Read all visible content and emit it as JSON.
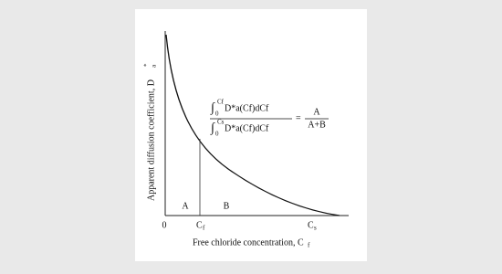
{
  "figure": {
    "y_axis_label": {
      "text": "Apparent diffusion coefficient, D",
      "sub": "a",
      "sup": "*"
    },
    "x_axis_label": {
      "text": "Free chloride concentration, C",
      "sub": "f"
    },
    "origin": "0",
    "cf_tick": {
      "text": "C",
      "sub": "f"
    },
    "cs_tick": {
      "text": "C",
      "sub": "s"
    },
    "region_a": "A",
    "region_b": "B",
    "formula": {
      "integral": "∫",
      "num_upper": "Cf",
      "num_lower": "0",
      "num_body": "D*a(Cf)dCf",
      "den_upper": "Cs",
      "den_lower": "0",
      "den_body": "D*a(Cf)dCf",
      "equals": "=",
      "rhs_num": "A",
      "rhs_den": "A+B"
    }
  }
}
